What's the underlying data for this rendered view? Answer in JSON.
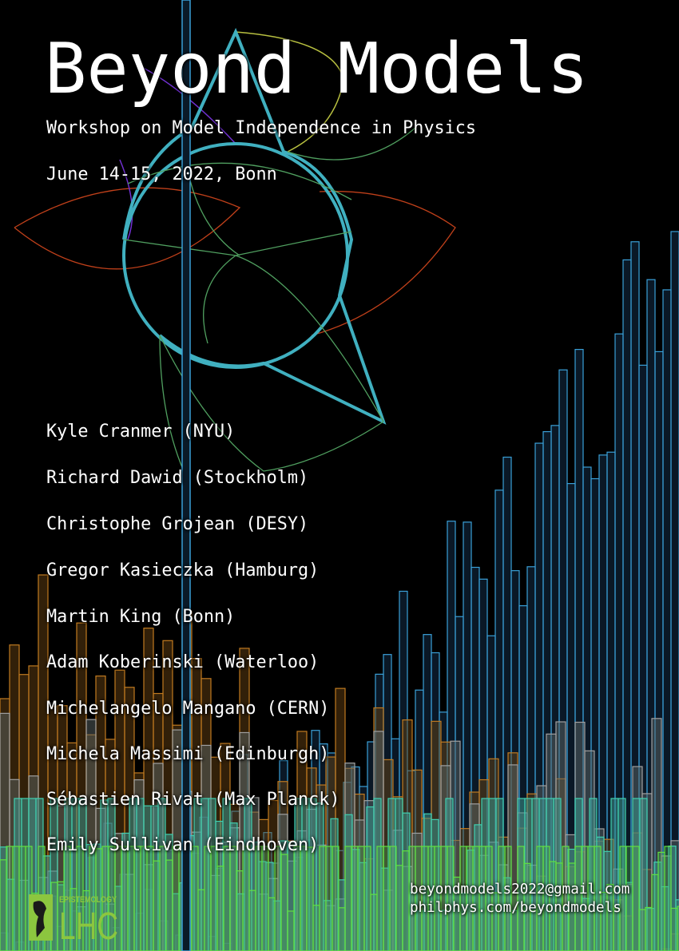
{
  "title": "Beyond Models",
  "subtitle": "Workshop on Model Independence in Physics",
  "date": "June 14-15, 2022, Bonn",
  "speakers": [
    "Kyle Cranmer (NYU)",
    "Richard Dawid (Stockholm)",
    "Christophe Grojean (DESY)",
    "Gregor Kasieczka (Hamburg)",
    "Martin King (Bonn)",
    "Adam Koberinski (Waterloo)",
    "Michelangelo Mangano (CERN)",
    "Michela Massimi (Edinburgh)",
    "Sébastien Rivat (Max Planck)",
    "Emily Sullivan (Eindhoven)"
  ],
  "contact": {
    "email": "beyondmodels2022@gmail.com",
    "website": "philphys.com/beyondmodels"
  },
  "logo": {
    "top": "EPISTEMOLOGY",
    "main": "LHC",
    "color": "#8cc63f"
  },
  "colors": {
    "background": "#000000",
    "text": "#ffffff",
    "bars_blue": "#3aa0d8",
    "bars_orange": "#c07a20",
    "bars_teal": "#40d0b0"
  }
}
